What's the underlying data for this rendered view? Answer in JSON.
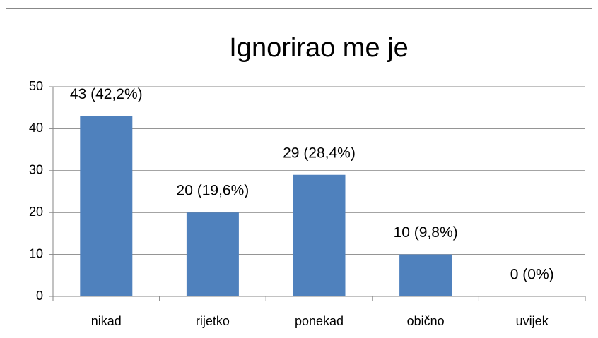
{
  "chart_data": {
    "type": "bar",
    "title": "Ignorirao me je",
    "categories": [
      "nikad",
      "rijetko",
      "ponekad",
      "obično",
      "uvijek"
    ],
    "values": [
      43,
      20,
      29,
      10,
      0
    ],
    "value_labels": [
      "43 (42,2%)",
      "20 (19,6%)",
      "29 (28,4%)",
      "10 (9,8%)",
      "0 (0%)"
    ],
    "color": "#4f81bd",
    "ylim": [
      0,
      50
    ],
    "yticks": [
      0,
      10,
      20,
      30,
      40,
      50
    ],
    "grid": true
  }
}
